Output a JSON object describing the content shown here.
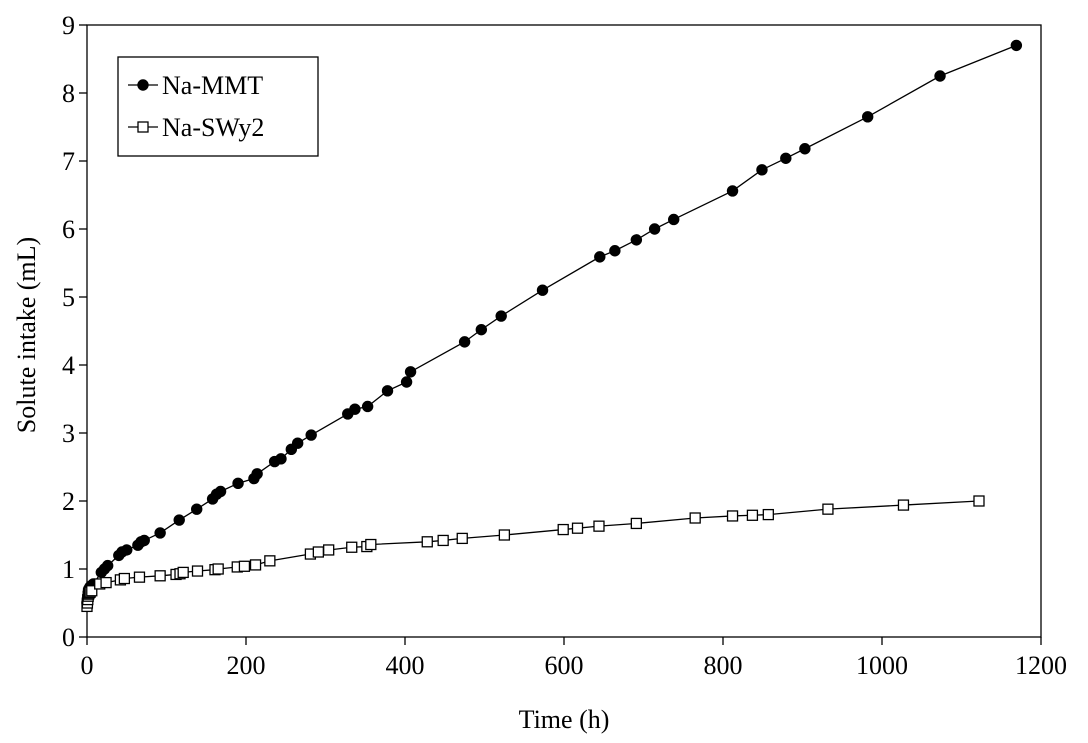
{
  "chart_data": {
    "type": "scatter",
    "title": "",
    "xlabel": "Time (h)",
    "ylabel": "Solute intake (mL)",
    "xlim": [
      0,
      1200
    ],
    "ylim": [
      0,
      9
    ],
    "xticks": [
      0,
      200,
      400,
      600,
      800,
      1000,
      1200
    ],
    "yticks": [
      0,
      1,
      2,
      3,
      4,
      5,
      6,
      7,
      8,
      9
    ],
    "xtick_labels": [
      "0",
      "200",
      "400",
      "600",
      "800",
      "1000",
      "1200"
    ],
    "ytick_labels": [
      "0",
      "1",
      "2",
      "3",
      "4",
      "5",
      "6",
      "7",
      "8",
      "9"
    ],
    "grid": false,
    "legend": "top-left",
    "series": [
      {
        "name": "Na-MMT",
        "marker": "filled-circle",
        "color": "#000000",
        "x": [
          0,
          0.5,
          1,
          1.5,
          2,
          3,
          4,
          6,
          8,
          18,
          22,
          26,
          40,
          44,
          50,
          64,
          68,
          72,
          92,
          116,
          138,
          158,
          163,
          168,
          190,
          210,
          214,
          236,
          244,
          257,
          265,
          282,
          328,
          337,
          353,
          378,
          402,
          407,
          475,
          496,
          521,
          573,
          645,
          664,
          691,
          714,
          738,
          812,
          849,
          879,
          903,
          982,
          1073,
          1169
        ],
        "y": [
          0.5,
          0.55,
          0.6,
          0.65,
          0.7,
          0.72,
          0.74,
          0.76,
          0.78,
          0.95,
          1.0,
          1.05,
          1.2,
          1.25,
          1.28,
          1.35,
          1.4,
          1.42,
          1.53,
          1.72,
          1.88,
          2.03,
          2.1,
          2.14,
          2.26,
          2.33,
          2.4,
          2.58,
          2.62,
          2.76,
          2.85,
          2.97,
          3.28,
          3.35,
          3.39,
          3.62,
          3.75,
          3.9,
          4.34,
          4.52,
          4.72,
          5.1,
          5.59,
          5.68,
          5.84,
          6.0,
          6.14,
          6.56,
          6.87,
          7.04,
          7.18,
          7.65,
          8.25,
          8.7
        ]
      },
      {
        "name": "Na-SWy2",
        "marker": "open-square",
        "color": "#000000",
        "x": [
          0,
          0.5,
          1,
          1.5,
          2,
          3,
          4,
          6,
          16,
          24,
          42,
          47,
          66,
          92,
          112,
          117,
          121,
          139,
          161,
          165,
          189,
          198,
          212,
          230,
          281,
          291,
          304,
          333,
          352,
          357,
          428,
          448,
          472,
          525,
          599,
          617,
          644,
          691,
          765,
          812,
          837,
          857,
          932,
          1027,
          1122
        ],
        "y": [
          0.45,
          0.5,
          0.55,
          0.6,
          0.63,
          0.65,
          0.66,
          0.68,
          0.78,
          0.8,
          0.84,
          0.86,
          0.88,
          0.9,
          0.92,
          0.93,
          0.95,
          0.97,
          0.99,
          1.0,
          1.03,
          1.04,
          1.06,
          1.12,
          1.22,
          1.25,
          1.28,
          1.32,
          1.33,
          1.36,
          1.4,
          1.42,
          1.45,
          1.5,
          1.58,
          1.6,
          1.63,
          1.67,
          1.75,
          1.78,
          1.79,
          1.8,
          1.88,
          1.94,
          2.0
        ]
      }
    ]
  }
}
